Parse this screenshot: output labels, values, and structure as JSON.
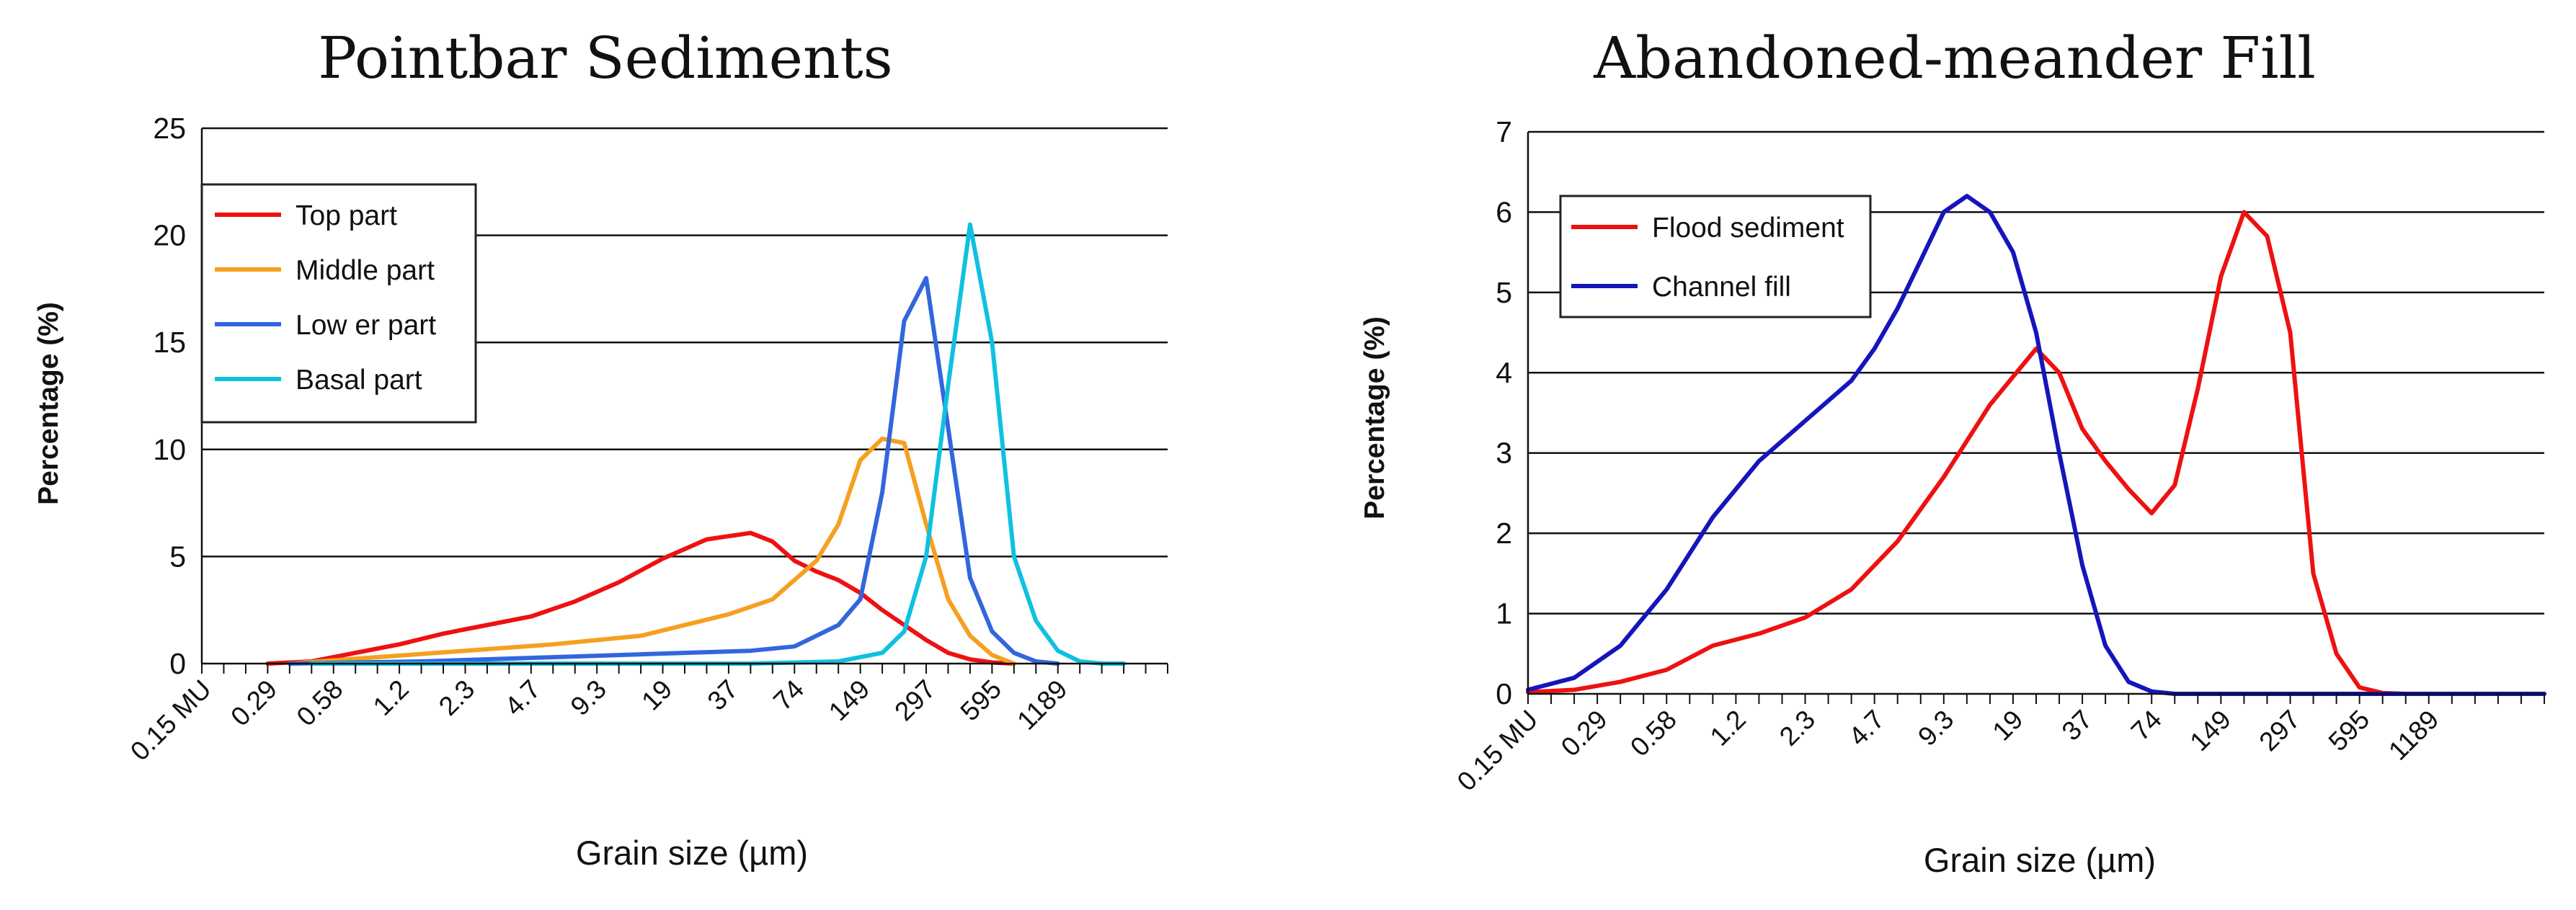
{
  "chart_data": [
    {
      "type": "line",
      "title": "Pointbar Sediments",
      "xlabel": "Grain size (µm)",
      "ylabel": "Percentage (%)",
      "ylim": [
        0,
        25
      ],
      "yticks": [
        0,
        5,
        10,
        15,
        20,
        25
      ],
      "grid": true,
      "legend_position": "top-left",
      "x_tick_labels": [
        "0.15 MU",
        "0.29",
        "0.58",
        "1.2",
        "2.3",
        "4.7",
        "9.3",
        "19",
        "37",
        "74",
        "149",
        "297",
        "595",
        "1189"
      ],
      "x_bins": 44,
      "series": [
        {
          "name": "Top part",
          "color": "#ee1111",
          "x": [
            3,
            5,
            7,
            9,
            11,
            13,
            15,
            17,
            19,
            21,
            23,
            25,
            26,
            27,
            28,
            29,
            30,
            31,
            33,
            34,
            35,
            36,
            37
          ],
          "values": [
            0,
            0.1,
            0.5,
            0.9,
            1.4,
            1.8,
            2.2,
            2.9,
            3.8,
            4.9,
            5.8,
            6.1,
            5.7,
            4.8,
            4.3,
            3.9,
            3.3,
            2.5,
            1.1,
            0.5,
            0.2,
            0.05,
            0
          ]
        },
        {
          "name": "Middle part",
          "color": "#f5a020",
          "x": [
            4,
            8,
            12,
            16,
            20,
            24,
            26,
            28,
            29,
            30,
            31,
            32,
            33,
            34,
            35,
            36,
            37
          ],
          "values": [
            0,
            0.3,
            0.6,
            0.9,
            1.3,
            2.3,
            3.0,
            4.8,
            6.5,
            9.5,
            10.5,
            10.3,
            6.5,
            3.0,
            1.3,
            0.4,
            0
          ]
        },
        {
          "name": "Low er part",
          "color": "#3366dd",
          "x": [
            4,
            10,
            16,
            22,
            25,
            27,
            29,
            30,
            31,
            32,
            33,
            34,
            35,
            36,
            37,
            38,
            39
          ],
          "values": [
            0,
            0.1,
            0.3,
            0.5,
            0.6,
            0.8,
            1.8,
            3.0,
            8.0,
            16.0,
            18.0,
            11.0,
            4.0,
            1.5,
            0.5,
            0.1,
            0
          ]
        },
        {
          "name": "Basal part",
          "color": "#10c0e0",
          "x": [
            5,
            15,
            25,
            29,
            31,
            32,
            33,
            34,
            35,
            36,
            37,
            38,
            39,
            40,
            41,
            42
          ],
          "values": [
            0,
            0,
            0,
            0.1,
            0.5,
            1.5,
            5.0,
            13.0,
            20.5,
            15.0,
            5.0,
            2.0,
            0.6,
            0.1,
            0,
            0
          ]
        }
      ]
    },
    {
      "type": "line",
      "title": "Abandoned-meander Fill",
      "xlabel": "Grain size (µm)",
      "ylabel": "Percentage (%)",
      "ylim": [
        0,
        7
      ],
      "yticks": [
        0,
        1,
        2,
        3,
        4,
        5,
        6,
        7
      ],
      "grid": true,
      "legend_position": "top-left",
      "x_tick_labels": [
        "0.15 MU",
        "0.29",
        "0.58",
        "1.2",
        "2.3",
        "4.7",
        "9.3",
        "19",
        "37",
        "74",
        "149",
        "297",
        "595",
        "1189"
      ],
      "x_bins": 44,
      "series": [
        {
          "name": "Flood sediment",
          "color": "#ee1111",
          "x": [
            0,
            2,
            4,
            6,
            8,
            10,
            12,
            14,
            16,
            18,
            20,
            22,
            23,
            24,
            25,
            26,
            27,
            28,
            29,
            30,
            31,
            32,
            33,
            34,
            35,
            36,
            37,
            38,
            39,
            40,
            44
          ],
          "values": [
            0.02,
            0.05,
            0.15,
            0.3,
            0.6,
            0.75,
            0.95,
            1.3,
            1.9,
            2.7,
            3.6,
            4.3,
            4.0,
            3.3,
            2.9,
            2.55,
            2.25,
            2.6,
            3.8,
            5.2,
            6.0,
            5.7,
            4.5,
            1.5,
            0.5,
            0.08,
            0.01,
            0,
            0,
            0,
            0
          ]
        },
        {
          "name": "Channel fill",
          "color": "#1515bb",
          "x": [
            0,
            2,
            4,
            6,
            8,
            10,
            12,
            14,
            15,
            16,
            17,
            18,
            19,
            20,
            21,
            22,
            23,
            24,
            25,
            26,
            27,
            28,
            30,
            44
          ],
          "values": [
            0.05,
            0.2,
            0.6,
            1.3,
            2.2,
            2.9,
            3.4,
            3.9,
            4.3,
            4.8,
            5.4,
            6.0,
            6.2,
            6.0,
            5.5,
            4.5,
            3.0,
            1.6,
            0.6,
            0.15,
            0.03,
            0,
            0,
            0
          ]
        }
      ]
    }
  ]
}
